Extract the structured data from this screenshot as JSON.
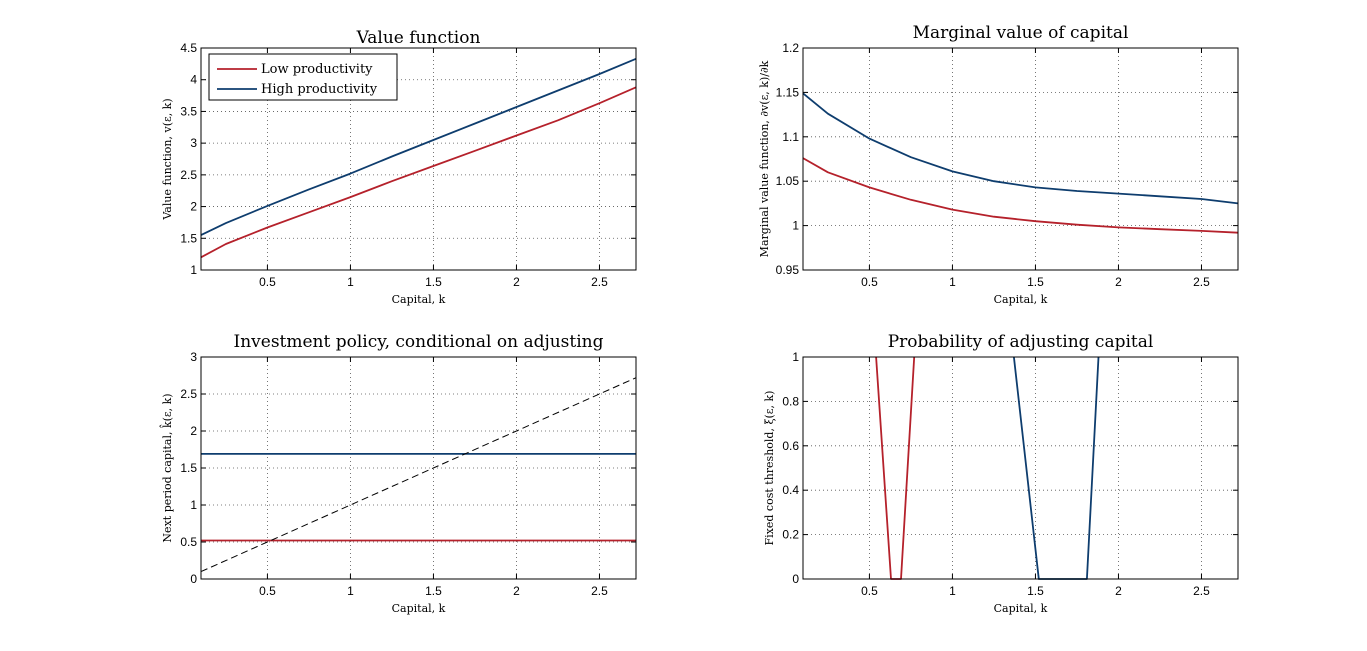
{
  "colors": {
    "low": "#b5212b",
    "high": "#0e3d6e",
    "ref": "#000000"
  },
  "chart_data": [
    {
      "id": "value",
      "type": "line",
      "title": "Value function",
      "xlabel": "Capital, k",
      "ylabel": "Value function, v(ε, k)",
      "xlim": [
        0.1,
        2.72
      ],
      "ylim": [
        1,
        4.5
      ],
      "xticks": [
        0.5,
        1,
        1.5,
        2,
        2.5
      ],
      "xticklabels": [
        "0.5",
        "1",
        "1.5",
        "2",
        "2.5"
      ],
      "yticks": [
        1,
        1.5,
        2,
        2.5,
        3,
        3.5,
        4,
        4.5
      ],
      "yticklabels": [
        "1",
        "1.5",
        "2",
        "2.5",
        "3",
        "3.5",
        "4",
        "4.5"
      ],
      "grid": true,
      "legend": {
        "position": "top-left",
        "entries": [
          "Low productivity",
          "High productivity"
        ]
      },
      "series": [
        {
          "name": "Low productivity",
          "color_key": "low",
          "x": [
            0.1,
            0.25,
            0.5,
            0.75,
            1.0,
            1.25,
            1.5,
            1.75,
            2.0,
            2.25,
            2.5,
            2.72
          ],
          "y": [
            1.2,
            1.41,
            1.67,
            1.91,
            2.15,
            2.4,
            2.64,
            2.88,
            3.12,
            3.36,
            3.63,
            3.88
          ]
        },
        {
          "name": "High productivity",
          "color_key": "high",
          "x": [
            0.1,
            0.25,
            0.5,
            0.75,
            1.0,
            1.25,
            1.5,
            1.75,
            2.0,
            2.25,
            2.5,
            2.72
          ],
          "y": [
            1.55,
            1.74,
            2.01,
            2.27,
            2.52,
            2.79,
            3.05,
            3.31,
            3.57,
            3.83,
            4.09,
            4.33
          ]
        }
      ]
    },
    {
      "id": "marginal",
      "type": "line",
      "title": "Marginal value of capital",
      "xlabel": "Capital, k",
      "ylabel": "Marginal value function, ∂v(ε, k)/∂k",
      "xlim": [
        0.1,
        2.72
      ],
      "ylim": [
        0.95,
        1.2
      ],
      "xticks": [
        0.5,
        1,
        1.5,
        2,
        2.5
      ],
      "xticklabels": [
        "0.5",
        "1",
        "1.5",
        "2",
        "2.5"
      ],
      "yticks": [
        0.95,
        1.0,
        1.05,
        1.1,
        1.15,
        1.2
      ],
      "yticklabels": [
        "0.95",
        "1",
        "1.05",
        "1.1",
        "1.15",
        "1.2"
      ],
      "grid": true,
      "series": [
        {
          "color_key": "low",
          "x": [
            0.1,
            0.25,
            0.5,
            0.75,
            1.0,
            1.25,
            1.5,
            1.75,
            2.0,
            2.25,
            2.5,
            2.72
          ],
          "y": [
            1.076,
            1.06,
            1.043,
            1.029,
            1.018,
            1.01,
            1.005,
            1.001,
            0.998,
            0.996,
            0.994,
            0.992
          ]
        },
        {
          "color_key": "high",
          "x": [
            0.1,
            0.25,
            0.5,
            0.75,
            1.0,
            1.25,
            1.5,
            1.75,
            2.0,
            2.25,
            2.5,
            2.72
          ],
          "y": [
            1.149,
            1.126,
            1.098,
            1.077,
            1.061,
            1.05,
            1.043,
            1.039,
            1.036,
            1.033,
            1.03,
            1.025
          ]
        }
      ]
    },
    {
      "id": "policy",
      "type": "line",
      "title": "Investment policy, conditional on adjusting",
      "xlabel": "Capital, k",
      "ylabel": "Next period capital, k̂(ε, k)",
      "xlim": [
        0.1,
        2.72
      ],
      "ylim": [
        0,
        3
      ],
      "xticks": [
        0.5,
        1,
        1.5,
        2,
        2.5
      ],
      "xticklabels": [
        "0.5",
        "1",
        "1.5",
        "2",
        "2.5"
      ],
      "yticks": [
        0,
        0.5,
        1,
        1.5,
        2,
        2.5,
        3
      ],
      "yticklabels": [
        "0",
        "0.5",
        "1",
        "1.5",
        "2",
        "2.5",
        "3"
      ],
      "grid": true,
      "series": [
        {
          "color_key": "low",
          "x": [
            0.1,
            2.72
          ],
          "y": [
            0.52,
            0.52
          ]
        },
        {
          "color_key": "high",
          "x": [
            0.1,
            2.72
          ],
          "y": [
            1.69,
            1.69
          ]
        },
        {
          "color_key": "ref",
          "dashed": true,
          "x": [
            0.1,
            2.72
          ],
          "y": [
            0.1,
            2.72
          ]
        }
      ]
    },
    {
      "id": "probability",
      "type": "line",
      "title": "Probability of adjusting capital",
      "xlabel": "Capital, k",
      "ylabel": "Fixed cost threshold, ξ(ε, k)",
      "xlim": [
        0.1,
        2.72
      ],
      "ylim": [
        0,
        1
      ],
      "xticks": [
        0.5,
        1,
        1.5,
        2,
        2.5
      ],
      "xticklabels": [
        "0.5",
        "1",
        "1.5",
        "2",
        "2.5"
      ],
      "yticks": [
        0,
        0.2,
        0.4,
        0.6,
        0.8,
        1
      ],
      "yticklabels": [
        "0",
        "0.2",
        "0.4",
        "0.6",
        "0.8",
        "1"
      ],
      "grid": true,
      "series": [
        {
          "color_key": "low",
          "x": [
            0.54,
            0.63,
            0.69,
            0.77
          ],
          "y": [
            1.0,
            0.0,
            0.0,
            1.0
          ]
        },
        {
          "color_key": "high",
          "x": [
            1.37,
            1.52,
            1.81,
            1.88
          ],
          "y": [
            1.0,
            0.0,
            0.0,
            1.0
          ]
        }
      ]
    }
  ]
}
